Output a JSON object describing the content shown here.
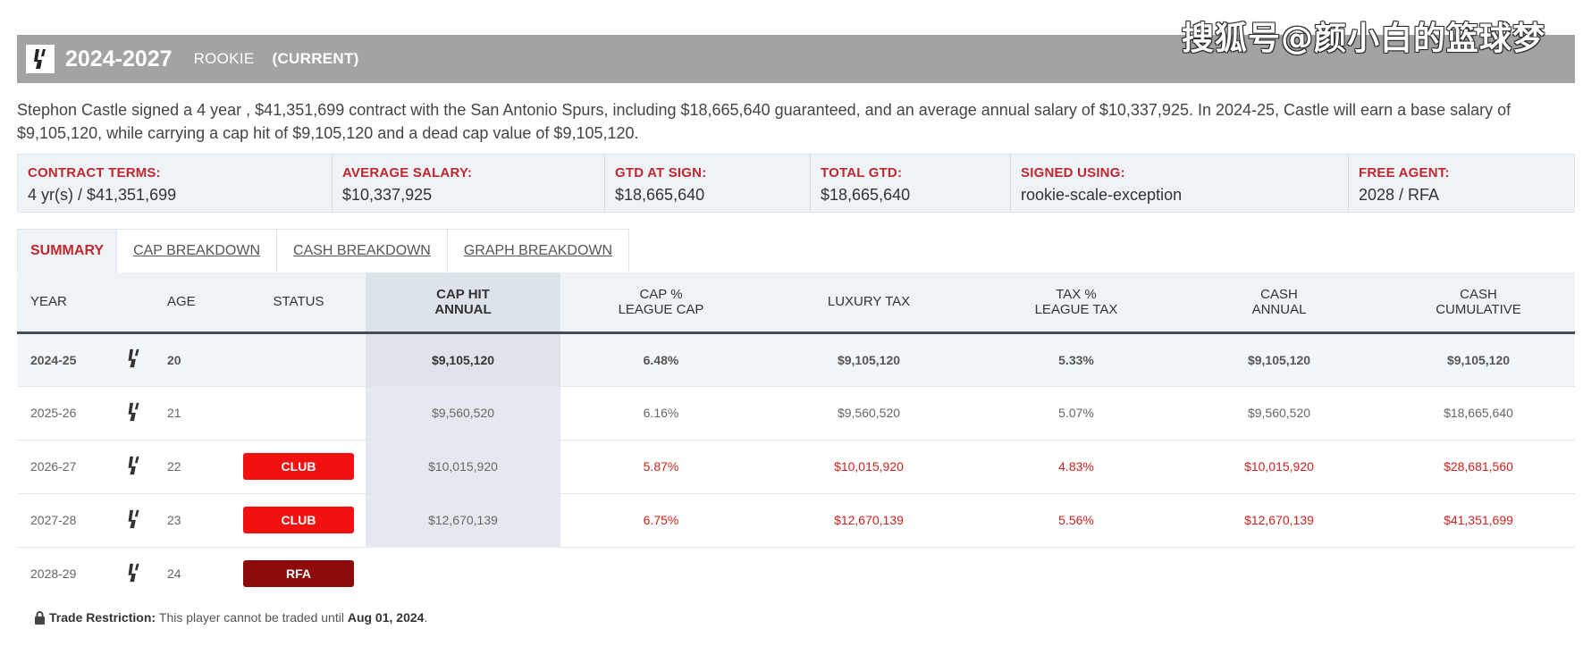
{
  "watermark": "搜狐号@颜小白的篮球梦",
  "header": {
    "years": "2024-2027",
    "type": "ROOKIE",
    "current": "(CURRENT)",
    "logo_icon": "spurs-logo-icon"
  },
  "summary": "Stephon Castle signed a 4 year , $41,351,699 contract with the San Antonio Spurs, including $18,665,640 guaranteed, and an average annual salary of $10,337,925. In 2024-25, Castle will earn a base salary of $9,105,120, while carrying a cap hit of $9,105,120 and a dead cap value of $9,105,120.",
  "terms": [
    {
      "label": "CONTRACT TERMS:",
      "value": "4 yr(s) / $41,351,699"
    },
    {
      "label": "AVERAGE SALARY:",
      "value": "$10,337,925"
    },
    {
      "label": "GTD AT SIGN:",
      "value": "$18,665,640"
    },
    {
      "label": "TOTAL GTD:",
      "value": "$18,665,640"
    },
    {
      "label": "SIGNED USING:",
      "value": "rookie-scale-exception"
    },
    {
      "label": "FREE AGENT:",
      "value": "2028 / RFA"
    }
  ],
  "tabs": [
    "SUMMARY",
    "CAP BREAKDOWN",
    "CASH BREAKDOWN",
    "GRAPH BREAKDOWN"
  ],
  "columns": {
    "year": "YEAR",
    "age": "AGE",
    "status": "STATUS",
    "cap_hit": [
      "CAP HIT",
      "ANNUAL"
    ],
    "cap_pct": [
      "CAP %",
      "LEAGUE CAP"
    ],
    "luxury_tax": "LUXURY TAX",
    "tax_pct": [
      "TAX %",
      "LEAGUE TAX"
    ],
    "cash_annual": [
      "CASH",
      "ANNUAL"
    ],
    "cash_cumulative": [
      "CASH",
      "CUMULATIVE"
    ]
  },
  "rows": [
    {
      "year": "2024-25",
      "age": "20",
      "status": "",
      "cap_hit": "$9,105,120",
      "cap_pct": "6.48%",
      "luxury_tax": "$9,105,120",
      "tax_pct": "5.33%",
      "cash_annual": "$9,105,120",
      "cash_cumulative": "$9,105,120"
    },
    {
      "year": "2025-26",
      "age": "21",
      "status": "",
      "cap_hit": "$9,560,520",
      "cap_pct": "6.16%",
      "luxury_tax": "$9,560,520",
      "tax_pct": "5.07%",
      "cash_annual": "$9,560,520",
      "cash_cumulative": "$18,665,640"
    },
    {
      "year": "2026-27",
      "age": "22",
      "status": "CLUB",
      "cap_hit": "$10,015,920",
      "cap_pct": "5.87%",
      "luxury_tax": "$10,015,920",
      "tax_pct": "4.83%",
      "cash_annual": "$10,015,920",
      "cash_cumulative": "$28,681,560"
    },
    {
      "year": "2027-28",
      "age": "23",
      "status": "CLUB",
      "cap_hit": "$12,670,139",
      "cap_pct": "6.75%",
      "luxury_tax": "$12,670,139",
      "tax_pct": "5.56%",
      "cash_annual": "$12,670,139",
      "cash_cumulative": "$41,351,699"
    },
    {
      "year": "2028-29",
      "age": "24",
      "status": "RFA",
      "cap_hit": "",
      "cap_pct": "",
      "luxury_tax": "",
      "tax_pct": "",
      "cash_annual": "",
      "cash_cumulative": ""
    }
  ],
  "trade_note": {
    "label": "Trade Restriction:",
    "text": "This player cannot be traded until",
    "date": "Aug 01, 2024",
    "end": "."
  },
  "colors": {
    "header_bg": "#a3a3a3",
    "label_red": "#c0272d",
    "club_badge": "#f21010",
    "rfa_badge": "#8f0a0a",
    "option_value_red": "#d0221c"
  }
}
